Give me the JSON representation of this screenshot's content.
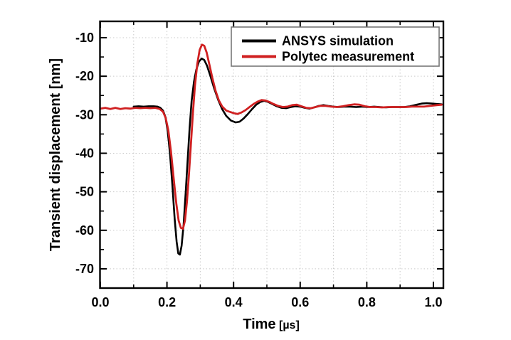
{
  "figure": {
    "background": "#ffffff",
    "frame_color": "#000000",
    "grid_color": "#c9c9c9",
    "legend_border_color": "#777777"
  },
  "axes": {
    "x": {
      "title": "Time",
      "unit": " [µs]",
      "major_ticks": [
        0.0,
        0.2,
        0.4,
        0.6,
        0.8,
        1.0
      ],
      "major_tick_labels": [
        "0.0",
        "0.2",
        "0.4",
        "0.6",
        "0.8",
        "1.0"
      ],
      "minor_ticks": [
        0.1,
        0.3,
        0.5,
        0.7,
        0.9
      ],
      "grid_positions": [
        0.1,
        0.2,
        0.3,
        0.4,
        0.5,
        0.6,
        0.7,
        0.8,
        0.9,
        1.0
      ]
    },
    "y": {
      "title": "Transient displacement [nm]",
      "major_ticks": [
        -10,
        -20,
        -30,
        -40,
        -50,
        -60,
        -70
      ],
      "major_tick_labels": [
        "-10",
        "-20",
        "-30",
        "-40",
        "-50",
        "-60",
        "-70"
      ],
      "minor_ticks": [
        -15,
        -25,
        -35,
        -45,
        -55,
        -65
      ],
      "grid_positions": [
        -10,
        -20,
        -30,
        -40,
        -50,
        -60,
        -70
      ]
    }
  },
  "legend": {
    "entries": [
      {
        "label": "ANSYS simulation",
        "color": "#000000"
      },
      {
        "label": "Polytec measurement",
        "color": "#d02021"
      }
    ]
  },
  "chart_data": {
    "type": "line",
    "title": "",
    "xlabel": "Time [µs]",
    "ylabel": "Transient displacement [nm]",
    "xlim": [
      0,
      1.03
    ],
    "ylim": [
      -75,
      -5.75
    ],
    "grid": true,
    "legend_position": "top-right",
    "series": [
      {
        "name": "ANSYS simulation",
        "color": "#000000",
        "stroke_width": 2.6,
        "points": [
          [
            0.1,
            -27.9
          ],
          [
            0.115,
            -27.8
          ],
          [
            0.13,
            -27.9
          ],
          [
            0.145,
            -27.8
          ],
          [
            0.16,
            -27.8
          ],
          [
            0.172,
            -27.9
          ],
          [
            0.18,
            -28.2
          ],
          [
            0.188,
            -28.9
          ],
          [
            0.195,
            -30.5
          ],
          [
            0.202,
            -34.0
          ],
          [
            0.209,
            -40.0
          ],
          [
            0.216,
            -48.0
          ],
          [
            0.223,
            -57.0
          ],
          [
            0.229,
            -63.0
          ],
          [
            0.234,
            -66.0
          ],
          [
            0.239,
            -66.3
          ],
          [
            0.244,
            -64.0
          ],
          [
            0.25,
            -58.5
          ],
          [
            0.256,
            -50.5
          ],
          [
            0.262,
            -42.0
          ],
          [
            0.268,
            -33.5
          ],
          [
            0.274,
            -26.5
          ],
          [
            0.281,
            -21.5
          ],
          [
            0.288,
            -18.3
          ],
          [
            0.296,
            -16.2
          ],
          [
            0.304,
            -15.4
          ],
          [
            0.312,
            -15.8
          ],
          [
            0.32,
            -17.2
          ],
          [
            0.33,
            -19.8
          ],
          [
            0.342,
            -23.2
          ],
          [
            0.354,
            -26.2
          ],
          [
            0.366,
            -28.6
          ],
          [
            0.378,
            -30.3
          ],
          [
            0.392,
            -31.5
          ],
          [
            0.406,
            -32.0
          ],
          [
            0.418,
            -31.8
          ],
          [
            0.43,
            -31.0
          ],
          [
            0.442,
            -29.9
          ],
          [
            0.455,
            -28.6
          ],
          [
            0.468,
            -27.4
          ],
          [
            0.48,
            -26.7
          ],
          [
            0.492,
            -26.4
          ],
          [
            0.504,
            -26.7
          ],
          [
            0.516,
            -27.2
          ],
          [
            0.53,
            -27.8
          ],
          [
            0.544,
            -28.2
          ],
          [
            0.558,
            -28.3
          ],
          [
            0.572,
            -28.0
          ],
          [
            0.586,
            -27.8
          ],
          [
            0.6,
            -27.9
          ],
          [
            0.614,
            -28.2
          ],
          [
            0.628,
            -28.4
          ],
          [
            0.642,
            -28.1
          ],
          [
            0.656,
            -27.7
          ],
          [
            0.67,
            -27.5
          ],
          [
            0.684,
            -27.7
          ],
          [
            0.7,
            -27.9
          ],
          [
            0.716,
            -28.0
          ],
          [
            0.732,
            -27.9
          ],
          [
            0.75,
            -27.9
          ],
          [
            0.768,
            -28.0
          ],
          [
            0.786,
            -27.9
          ],
          [
            0.804,
            -28.0
          ],
          [
            0.822,
            -27.9
          ],
          [
            0.84,
            -28.0
          ],
          [
            0.858,
            -28.1
          ],
          [
            0.876,
            -28.0
          ],
          [
            0.894,
            -28.0
          ],
          [
            0.912,
            -28.0
          ],
          [
            0.93,
            -27.8
          ],
          [
            0.95,
            -27.4
          ],
          [
            0.965,
            -27.1
          ],
          [
            0.98,
            -27.0
          ],
          [
            0.995,
            -27.1
          ],
          [
            1.01,
            -27.2
          ],
          [
            1.025,
            -27.3
          ]
        ]
      },
      {
        "name": "Polytec measurement",
        "color": "#d02021",
        "stroke_width": 2.8,
        "points": [
          [
            0.0,
            -28.4
          ],
          [
            0.015,
            -28.2
          ],
          [
            0.03,
            -28.5
          ],
          [
            0.045,
            -28.2
          ],
          [
            0.06,
            -28.5
          ],
          [
            0.075,
            -28.3
          ],
          [
            0.09,
            -28.4
          ],
          [
            0.105,
            -28.2
          ],
          [
            0.12,
            -28.3
          ],
          [
            0.135,
            -28.2
          ],
          [
            0.15,
            -28.3
          ],
          [
            0.165,
            -28.2
          ],
          [
            0.178,
            -28.5
          ],
          [
            0.188,
            -29.2
          ],
          [
            0.196,
            -30.8
          ],
          [
            0.204,
            -34.0
          ],
          [
            0.212,
            -39.5
          ],
          [
            0.22,
            -46.5
          ],
          [
            0.228,
            -53.0
          ],
          [
            0.235,
            -57.5
          ],
          [
            0.242,
            -59.4
          ],
          [
            0.248,
            -59.6
          ],
          [
            0.254,
            -57.5
          ],
          [
            0.26,
            -52.5
          ],
          [
            0.266,
            -45.5
          ],
          [
            0.272,
            -37.5
          ],
          [
            0.278,
            -29.5
          ],
          [
            0.284,
            -22.5
          ],
          [
            0.291,
            -16.8
          ],
          [
            0.298,
            -13.2
          ],
          [
            0.305,
            -11.8
          ],
          [
            0.312,
            -12.1
          ],
          [
            0.319,
            -13.8
          ],
          [
            0.327,
            -16.8
          ],
          [
            0.336,
            -20.3
          ],
          [
            0.346,
            -23.8
          ],
          [
            0.356,
            -26.3
          ],
          [
            0.366,
            -27.9
          ],
          [
            0.378,
            -28.9
          ],
          [
            0.39,
            -29.3
          ],
          [
            0.402,
            -29.6
          ],
          [
            0.412,
            -29.8
          ],
          [
            0.424,
            -29.4
          ],
          [
            0.436,
            -28.8
          ],
          [
            0.448,
            -28.0
          ],
          [
            0.46,
            -27.2
          ],
          [
            0.472,
            -26.6
          ],
          [
            0.484,
            -26.2
          ],
          [
            0.496,
            -26.3
          ],
          [
            0.508,
            -26.7
          ],
          [
            0.52,
            -27.2
          ],
          [
            0.534,
            -27.7
          ],
          [
            0.548,
            -28.0
          ],
          [
            0.562,
            -27.9
          ],
          [
            0.576,
            -27.5
          ],
          [
            0.59,
            -27.4
          ],
          [
            0.604,
            -27.8
          ],
          [
            0.618,
            -28.2
          ],
          [
            0.632,
            -28.3
          ],
          [
            0.646,
            -28.0
          ],
          [
            0.66,
            -27.7
          ],
          [
            0.676,
            -27.7
          ],
          [
            0.692,
            -27.9
          ],
          [
            0.71,
            -28.0
          ],
          [
            0.728,
            -27.8
          ],
          [
            0.746,
            -27.5
          ],
          [
            0.762,
            -27.3
          ],
          [
            0.778,
            -27.4
          ],
          [
            0.794,
            -27.8
          ],
          [
            0.81,
            -28.0
          ],
          [
            0.828,
            -28.0
          ],
          [
            0.846,
            -28.1
          ],
          [
            0.864,
            -28.0
          ],
          [
            0.882,
            -28.0
          ],
          [
            0.9,
            -28.0
          ],
          [
            0.918,
            -28.0
          ],
          [
            0.936,
            -27.9
          ],
          [
            0.954,
            -27.9
          ],
          [
            0.972,
            -27.9
          ],
          [
            0.99,
            -27.7
          ],
          [
            1.01,
            -27.5
          ],
          [
            1.025,
            -27.4
          ]
        ]
      }
    ]
  }
}
